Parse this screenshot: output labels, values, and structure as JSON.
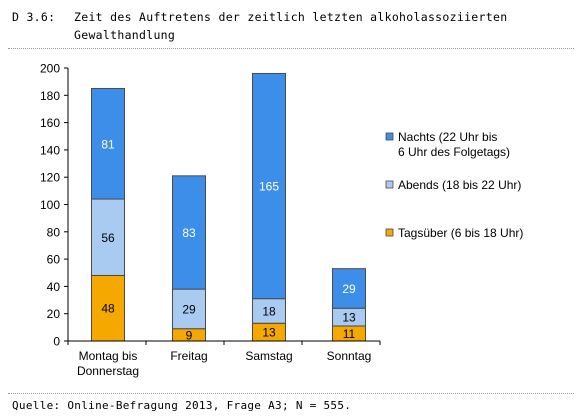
{
  "heading": {
    "label": "D 3.6:",
    "title": "Zeit des Auftretens der zeitlich letzten alkoholassoziierten Gewalthandlung"
  },
  "source_note": "Quelle: Online-Befragung 2013, Frage A3; N = 555.",
  "colors": {
    "nachts": "#3d8ee8",
    "abends": "#a9cbf2",
    "tagsueber": "#f5a800",
    "outline": "#4a4a4a"
  },
  "chart_data": {
    "type": "bar",
    "stacked": true,
    "categories": [
      [
        "Montag bis",
        "Donnerstag"
      ],
      [
        "Freitag"
      ],
      [
        "Samstag"
      ],
      [
        "Sonntag"
      ]
    ],
    "series": [
      {
        "name": "Tagsüber (6 bis 18 Uhr)",
        "color_key": "tagsueber",
        "values": [
          48,
          9,
          13,
          11
        ]
      },
      {
        "name": "Abends (18 bis 22 Uhr)",
        "color_key": "abends",
        "values": [
          56,
          29,
          18,
          13
        ]
      },
      {
        "name": "Nachts (22 Uhr bis 6 Uhr des Folgetags)",
        "color_key": "nachts",
        "values": [
          81,
          83,
          165,
          29
        ]
      }
    ],
    "legend": [
      {
        "lines": [
          "Nachts (22 Uhr bis",
          "6 Uhr des Folgetags)"
        ],
        "color_key": "nachts"
      },
      {
        "lines": [
          "Abends (18 bis 22 Uhr)"
        ],
        "color_key": "abends"
      },
      {
        "lines": [
          "Tagsüber (6 bis 18 Uhr)"
        ],
        "color_key": "tagsueber"
      }
    ],
    "legend_placement": "right",
    "ylim": [
      0,
      200
    ],
    "yticks": [
      0,
      20,
      40,
      60,
      80,
      100,
      120,
      140,
      160,
      180,
      200
    ],
    "grid": false,
    "xlabel": "",
    "ylabel": ""
  }
}
